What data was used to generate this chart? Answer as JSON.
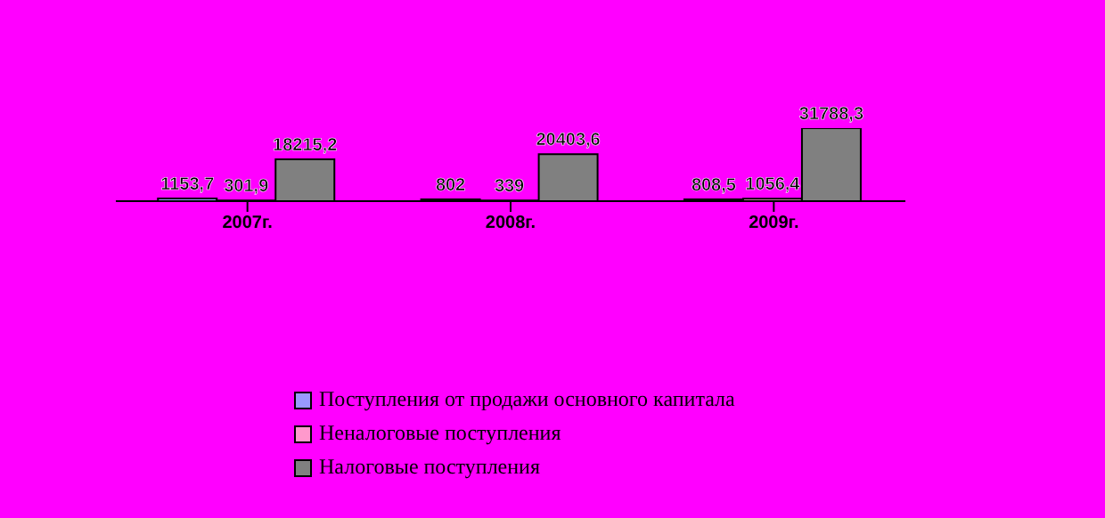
{
  "chart_data": {
    "type": "bar",
    "categories": [
      "2007г.",
      "2008г.",
      "2009г."
    ],
    "series": [
      {
        "name": "Поступления от продажи основного капитала",
        "color": "#9999ff",
        "values": [
          1153.7,
          802,
          808.5
        ],
        "value_labels": [
          "1153,7",
          "802",
          "808,5"
        ]
      },
      {
        "name": "Неналоговые поступления",
        "color": "#ff99cc",
        "values": [
          301.9,
          339,
          1056.4
        ],
        "value_labels": [
          "301,9",
          "339",
          "1056,4"
        ]
      },
      {
        "name": "Налоговые поступления",
        "color": "#808080",
        "values": [
          18215.2,
          20403.6,
          31788.3
        ],
        "value_labels": [
          "18215,2",
          "20403,6",
          "31788,3"
        ]
      }
    ],
    "legend": "bottom",
    "grid": false
  }
}
